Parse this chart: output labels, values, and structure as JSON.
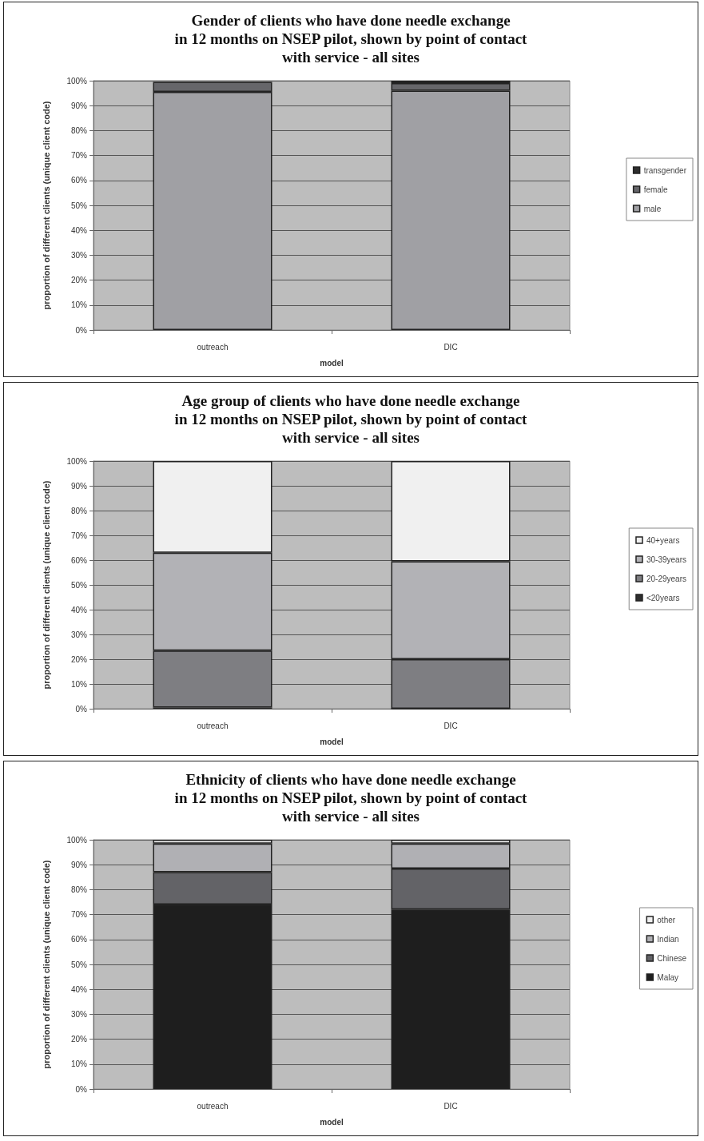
{
  "chart_data": [
    {
      "type": "bar",
      "stacked": true,
      "title": "Gender of clients who have done needle exchange\nin 12 months on NSEP pilot, shown by point of contact\nwith service - all sites",
      "xlabel": "model",
      "ylabel": "proportion of different clients (unique client code)",
      "categories": [
        "outreach",
        "DIC"
      ],
      "series": [
        {
          "name": "male",
          "color": "#a0a0a4",
          "values": [
            95.5,
            96
          ]
        },
        {
          "name": "female",
          "color": "#66666a",
          "values": [
            4,
            3
          ]
        },
        {
          "name": "transgender",
          "color": "#2e2e2e",
          "values": [
            null,
            1
          ]
        }
      ],
      "ylim": [
        0,
        100
      ],
      "yticks": [
        {
          "value": 0,
          "label": "0%"
        },
        {
          "value": 10,
          "label": "10%"
        },
        {
          "value": 20,
          "label": "20%"
        },
        {
          "value": 30,
          "label": "30%"
        },
        {
          "value": 40,
          "label": "40%"
        },
        {
          "value": 50,
          "label": "50%"
        },
        {
          "value": 60,
          "label": "60%"
        },
        {
          "value": 70,
          "label": "70%"
        },
        {
          "value": 80,
          "label": "80%"
        },
        {
          "value": 90,
          "label": "90%"
        },
        {
          "value": 100,
          "label": "100%"
        }
      ],
      "grid": "y",
      "legend": "right"
    },
    {
      "type": "bar",
      "stacked": true,
      "title": "Age group of clients who have done needle exchange\nin 12 months on NSEP pilot, shown by point of contact\nwith service - all sites",
      "xlabel": "model",
      "ylabel": "proportion of different clients (unique client code)",
      "categories": [
        "outreach",
        "DIC"
      ],
      "series": [
        {
          "name": "<20years",
          "color": "#2e2e2e",
          "values": [
            0.5,
            0
          ]
        },
        {
          "name": "20-29years",
          "color": "#7e7e82",
          "values": [
            23,
            20
          ]
        },
        {
          "name": "30-39years",
          "color": "#b2b2b6",
          "values": [
            39.5,
            39.5
          ]
        },
        {
          "name": "40+years",
          "color": "#f0f0f0",
          "values": [
            37,
            40.5
          ]
        }
      ],
      "ylim": [
        0,
        100
      ],
      "yticks": [
        {
          "value": 0,
          "label": "0%"
        },
        {
          "value": 10,
          "label": "10%"
        },
        {
          "value": 20,
          "label": "20%"
        },
        {
          "value": 30,
          "label": "30%"
        },
        {
          "value": 40,
          "label": "40%"
        },
        {
          "value": 50,
          "label": "50%"
        },
        {
          "value": 60,
          "label": "60%"
        },
        {
          "value": 70,
          "label": "70%"
        },
        {
          "value": 80,
          "label": "80%"
        },
        {
          "value": 90,
          "label": "90%"
        },
        {
          "value": 100,
          "label": "100%"
        }
      ],
      "grid": "y",
      "legend": "right"
    },
    {
      "type": "bar",
      "stacked": true,
      "title": "Ethnicity of clients who have done needle exchange\nin 12 months on NSEP pilot, shown by point of contact\nwith service - all sites",
      "xlabel": "model",
      "ylabel": "proportion of different clients (unique client code)",
      "categories": [
        "outreach",
        "DIC"
      ],
      "series": [
        {
          "name": "Malay",
          "color": "#1e1e1e",
          "values": [
            74,
            72
          ]
        },
        {
          "name": "Chinese",
          "color": "#636367",
          "values": [
            13,
            16.5
          ]
        },
        {
          "name": "Indian",
          "color": "#b0b0b4",
          "values": [
            11.5,
            10
          ]
        },
        {
          "name": "other",
          "color": "#f0f0f0",
          "values": [
            1.5,
            1.5
          ]
        }
      ],
      "ylim": [
        0,
        100
      ],
      "yticks": [
        {
          "value": 0,
          "label": "0%"
        },
        {
          "value": 10,
          "label": "10%"
        },
        {
          "value": 20,
          "label": "20%"
        },
        {
          "value": 30,
          "label": "30%"
        },
        {
          "value": 40,
          "label": "40%"
        },
        {
          "value": 50,
          "label": "50%"
        },
        {
          "value": 60,
          "label": "60%"
        },
        {
          "value": 70,
          "label": "70%"
        },
        {
          "value": 80,
          "label": "80%"
        },
        {
          "value": 90,
          "label": "90%"
        },
        {
          "value": 100,
          "label": "100%"
        }
      ],
      "grid": "y",
      "legend": "right"
    }
  ]
}
